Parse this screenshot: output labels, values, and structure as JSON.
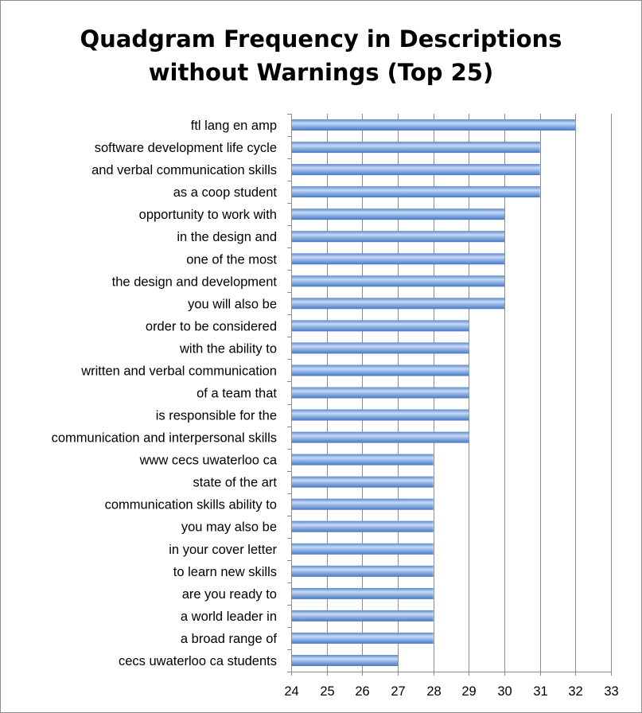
{
  "chart_data": {
    "type": "bar",
    "orientation": "horizontal",
    "title_lines": [
      "Quadgram Frequency in Descriptions",
      "without Warnings (Top 25)"
    ],
    "categories": [
      "ftl lang en amp",
      "software development life cycle",
      "and verbal communication skills",
      "as a coop student",
      "opportunity to work with",
      "in the design and",
      "one of the most",
      "the design and development",
      "you will also be",
      "order to be considered",
      "with the ability to",
      "written and verbal communication",
      "of a team that",
      "is responsible for the",
      "communication and interpersonal skills",
      "www cecs uwaterloo ca",
      "state of the art",
      "communication skills ability to",
      "you may also be",
      "in your cover letter",
      "to learn new skills",
      "are you ready to",
      "a world leader in",
      "a broad range of",
      "cecs uwaterloo ca students"
    ],
    "values": [
      32,
      31,
      31,
      31,
      30,
      30,
      30,
      30,
      30,
      29,
      29,
      29,
      29,
      29,
      29,
      28,
      28,
      28,
      28,
      28,
      28,
      28,
      28,
      28,
      27
    ],
    "xlim": [
      24,
      33
    ],
    "xticks": [
      "24",
      "25",
      "26",
      "27",
      "28",
      "29",
      "30",
      "31",
      "32",
      "33"
    ],
    "xlabel": "",
    "ylabel": "",
    "grid": "vertical",
    "legend": "none",
    "bar_color": "#7ea6e0",
    "bar_highlight": "#c9dcf5",
    "bar_shadow": "#4f7fc4"
  }
}
